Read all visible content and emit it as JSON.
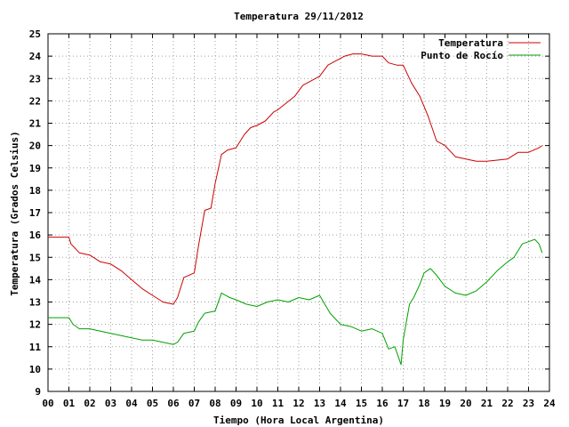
{
  "chart_data": {
    "type": "line",
    "title": "Temperatura 29/11/2012",
    "xlabel": "Tiempo (Hora Local Argentina)",
    "ylabel": "Temperatura (Grados Celsius)",
    "xlim": [
      0,
      24
    ],
    "ylim": [
      9,
      25
    ],
    "x_ticks": [
      "00",
      "01",
      "02",
      "03",
      "04",
      "05",
      "06",
      "07",
      "08",
      "09",
      "10",
      "11",
      "12",
      "13",
      "14",
      "15",
      "16",
      "17",
      "18",
      "19",
      "20",
      "21",
      "22",
      "23",
      "24"
    ],
    "y_ticks": [
      "9",
      "10",
      "11",
      "12",
      "13",
      "14",
      "15",
      "16",
      "17",
      "18",
      "19",
      "20",
      "21",
      "22",
      "23",
      "24",
      "25"
    ],
    "grid": true,
    "legend_position": "top-right",
    "series": [
      {
        "name": "Temperatura",
        "color": "#cc0000",
        "x": [
          0.0,
          0.5,
          1.0,
          1.1,
          1.5,
          2.0,
          2.5,
          3.0,
          3.5,
          4.0,
          4.5,
          5.0,
          5.5,
          6.0,
          6.2,
          6.5,
          7.0,
          7.2,
          7.5,
          7.8,
          8.0,
          8.3,
          8.6,
          9.0,
          9.4,
          9.7,
          10.0,
          10.4,
          10.8,
          11.0,
          11.4,
          11.8,
          12.2,
          12.6,
          13.0,
          13.4,
          13.8,
          14.2,
          14.6,
          15.0,
          15.5,
          16.0,
          16.3,
          16.7,
          17.0,
          17.4,
          17.8,
          18.2,
          18.6,
          19.0,
          19.5,
          20.0,
          20.5,
          21.0,
          21.5,
          22.0,
          22.5,
          23.0,
          23.5,
          23.65
        ],
        "y": [
          15.9,
          15.9,
          15.9,
          15.6,
          15.2,
          15.1,
          14.8,
          14.7,
          14.4,
          14.0,
          13.6,
          13.3,
          13.0,
          12.9,
          13.2,
          14.1,
          14.3,
          15.5,
          17.1,
          17.2,
          18.3,
          19.6,
          19.8,
          19.9,
          20.5,
          20.8,
          20.9,
          21.1,
          21.5,
          21.6,
          21.9,
          22.2,
          22.7,
          22.9,
          23.1,
          23.6,
          23.8,
          24.0,
          24.1,
          24.1,
          24.0,
          24.0,
          23.7,
          23.6,
          23.6,
          22.8,
          22.2,
          21.3,
          20.2,
          20.0,
          19.5,
          19.4,
          19.3,
          19.3,
          19.35,
          19.4,
          19.7,
          19.7,
          19.9,
          20.0
        ]
      },
      {
        "name": "Punto de Rocío",
        "color": "#00a000",
        "x": [
          0.0,
          0.5,
          1.0,
          1.2,
          1.5,
          2.0,
          2.5,
          3.0,
          3.5,
          4.0,
          4.5,
          5.0,
          5.5,
          6.0,
          6.2,
          6.5,
          7.0,
          7.2,
          7.5,
          8.0,
          8.3,
          8.7,
          9.0,
          9.5,
          10.0,
          10.5,
          11.0,
          11.5,
          12.0,
          12.5,
          13.0,
          13.5,
          14.0,
          14.5,
          15.0,
          15.5,
          16.0,
          16.3,
          16.6,
          16.9,
          17.0,
          17.3,
          17.5,
          17.8,
          18.0,
          18.3,
          18.6,
          19.0,
          19.5,
          20.0,
          20.5,
          21.0,
          21.5,
          22.0,
          22.3,
          22.7,
          23.0,
          23.3,
          23.5,
          23.65
        ],
        "y": [
          12.3,
          12.3,
          12.3,
          12.0,
          11.8,
          11.8,
          11.7,
          11.6,
          11.5,
          11.4,
          11.3,
          11.3,
          11.2,
          11.1,
          11.2,
          11.6,
          11.7,
          12.1,
          12.5,
          12.6,
          13.4,
          13.2,
          13.1,
          12.9,
          12.8,
          13.0,
          13.1,
          13.0,
          13.2,
          13.1,
          13.3,
          12.5,
          12.0,
          11.9,
          11.7,
          11.8,
          11.6,
          10.9,
          11.0,
          10.2,
          11.3,
          12.9,
          13.2,
          13.8,
          14.3,
          14.5,
          14.2,
          13.7,
          13.4,
          13.3,
          13.5,
          13.9,
          14.4,
          14.8,
          15.0,
          15.6,
          15.7,
          15.8,
          15.6,
          15.2
        ]
      }
    ]
  }
}
